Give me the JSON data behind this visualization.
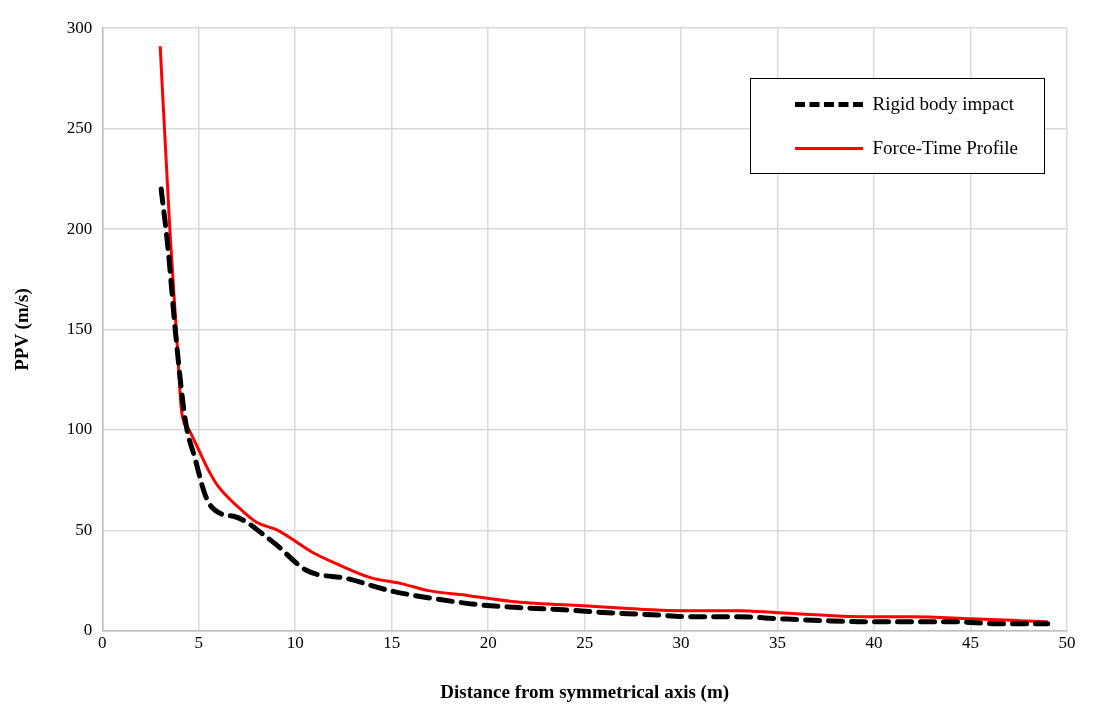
{
  "chart_data": {
    "type": "line",
    "xlabel": "Distance from symmetrical axis (m)",
    "ylabel": "PPV (m/s)",
    "xlim": [
      0,
      50
    ],
    "xticks": [
      0,
      5,
      10,
      15,
      20,
      25,
      30,
      35,
      40,
      45,
      50
    ],
    "ylim": [
      0,
      300
    ],
    "yticks": [
      0,
      50,
      100,
      150,
      200,
      250,
      300
    ],
    "grid": true,
    "legend": "top right",
    "marker": "none",
    "series": [
      {
        "name": "Rigid body impact",
        "color": "#000000",
        "line_style": "dashed",
        "x": [
          3.05,
          3.4,
          3.8,
          4.3,
          4.8,
          5.4,
          6.2,
          6.8,
          7.5,
          8.2,
          9,
          10.6,
          12.7,
          14.9,
          17.2,
          19.5,
          21.7,
          23.9,
          26.2,
          28.5,
          30.6,
          32.9,
          35.1,
          37.5,
          39.6,
          41.8,
          44.1,
          46.4,
          49
        ],
        "values": [
          220,
          191,
          148,
          105,
          86,
          66,
          58,
          57,
          54,
          49,
          43,
          30,
          26,
          20,
          16,
          13,
          11.5,
          10.5,
          9,
          8,
          7,
          7,
          6,
          5,
          4.5,
          4.5,
          4.5,
          3.5,
          3.5
        ]
      },
      {
        "name": "Force-Time Profile",
        "color": "#ff0000",
        "line_style": "solid",
        "x": [
          3,
          3.5,
          3.9,
          4.1,
          4.5,
          5,
          5.5,
          6,
          7,
          8,
          9.1,
          10.9,
          12,
          13.9,
          15.5,
          16.9,
          19,
          21.4,
          24.9,
          30,
          33,
          35,
          39.7,
          42,
          45,
          49
        ],
        "values": [
          291,
          200,
          140,
          110,
          100,
          90,
          80,
          72,
          62,
          54,
          50,
          39,
          34,
          26.5,
          23.5,
          20,
          17.5,
          14.5,
          12.5,
          10,
          10,
          9,
          7,
          7,
          6,
          4.5
        ]
      }
    ]
  }
}
